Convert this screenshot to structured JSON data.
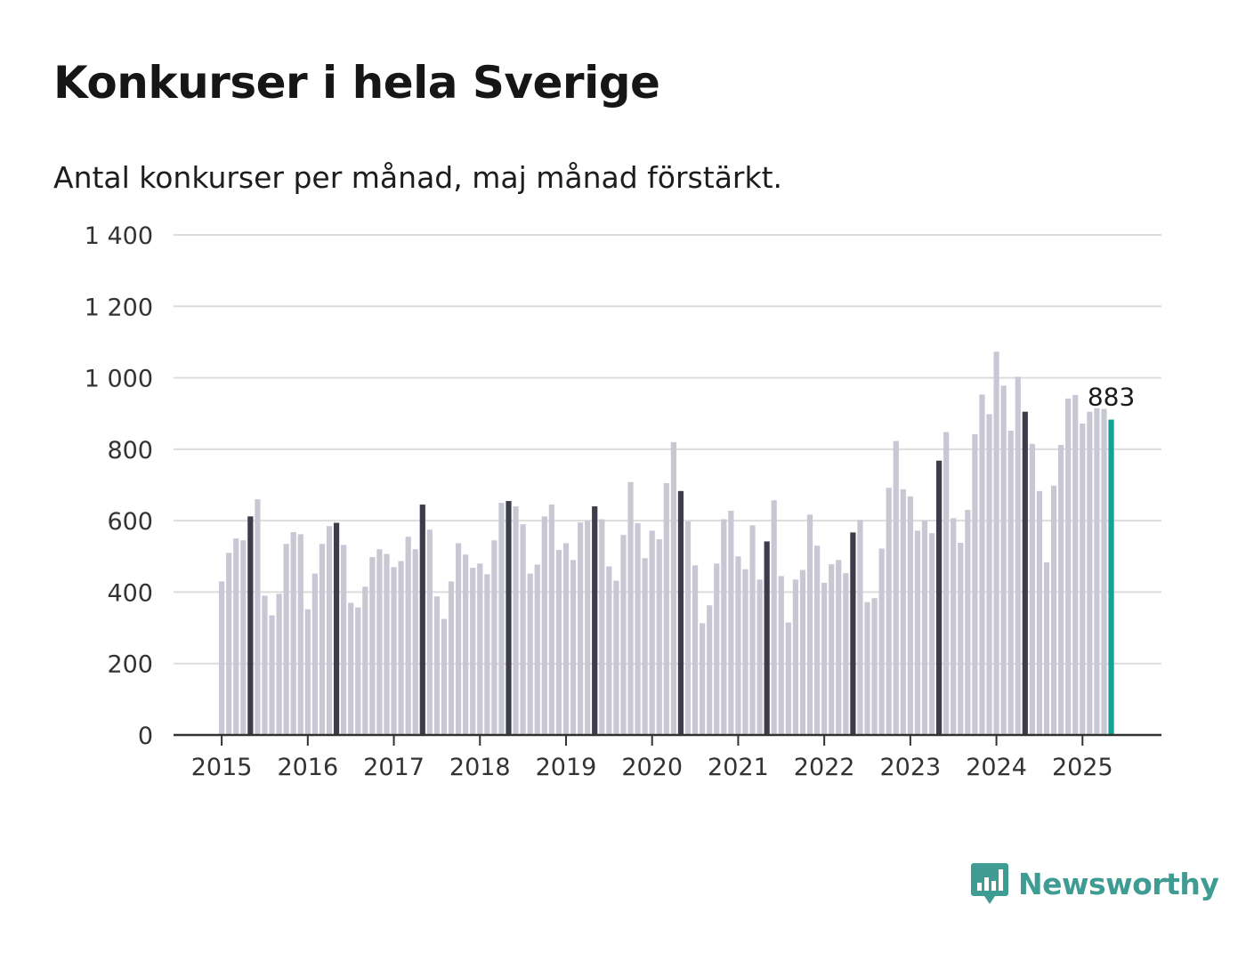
{
  "title": "Konkurser i hela Sverige",
  "subtitle": "Antal konkurser per månad, maj månad förstärkt.",
  "brand": {
    "name": "Newsworthy",
    "icon": "bar-chart-speech-bubble-icon",
    "color": "#3f9c93"
  },
  "colors": {
    "bar": "#c8c7d4",
    "highlight": "#3d3c4b",
    "latest": "#12a394",
    "grid": "#dcdcdc",
    "axis": "#333333"
  },
  "chart_data": {
    "type": "bar",
    "start": "2015-01",
    "highlight_month": "maj",
    "y_ticks": [
      "0",
      "200",
      "400",
      "600",
      "800",
      "1 000",
      "1 200",
      "1 400"
    ],
    "x_ticks": [
      "2015",
      "2016",
      "2017",
      "2018",
      "2019",
      "2020",
      "2021",
      "2022",
      "2023",
      "2024",
      "2025"
    ],
    "ylim": [
      0,
      1400
    ],
    "grid": true,
    "annotation": {
      "label": "883",
      "value": 883
    },
    "series": [
      {
        "values": [
          430,
          510,
          550,
          545,
          612,
          660,
          390,
          335,
          395,
          535,
          568,
          562,
          352,
          452,
          535,
          585,
          594,
          532,
          370,
          357,
          415,
          498,
          520,
          507,
          470,
          487,
          555,
          520,
          645,
          575,
          388,
          325,
          430,
          537,
          505,
          468,
          480,
          450,
          545,
          650,
          655,
          640,
          590,
          452,
          477,
          612,
          645,
          518,
          537,
          490,
          595,
          600,
          640,
          604,
          472,
          432,
          560,
          708,
          593,
          495,
          572,
          548,
          705,
          820,
          683,
          598,
          475,
          313,
          363,
          480,
          604,
          628,
          500,
          464,
          587,
          435,
          542,
          657,
          445,
          315,
          435,
          462,
          617,
          530,
          426,
          478,
          490,
          453,
          567,
          602,
          372,
          383,
          522,
          692,
          823,
          688,
          668,
          572,
          600,
          565,
          768,
          848,
          607,
          538,
          630,
          842,
          953,
          898,
          1073,
          978,
          852,
          1003,
          905,
          815,
          683,
          483,
          698,
          812,
          942,
          952,
          872,
          905,
          915,
          913,
          883
        ]
      }
    ]
  }
}
